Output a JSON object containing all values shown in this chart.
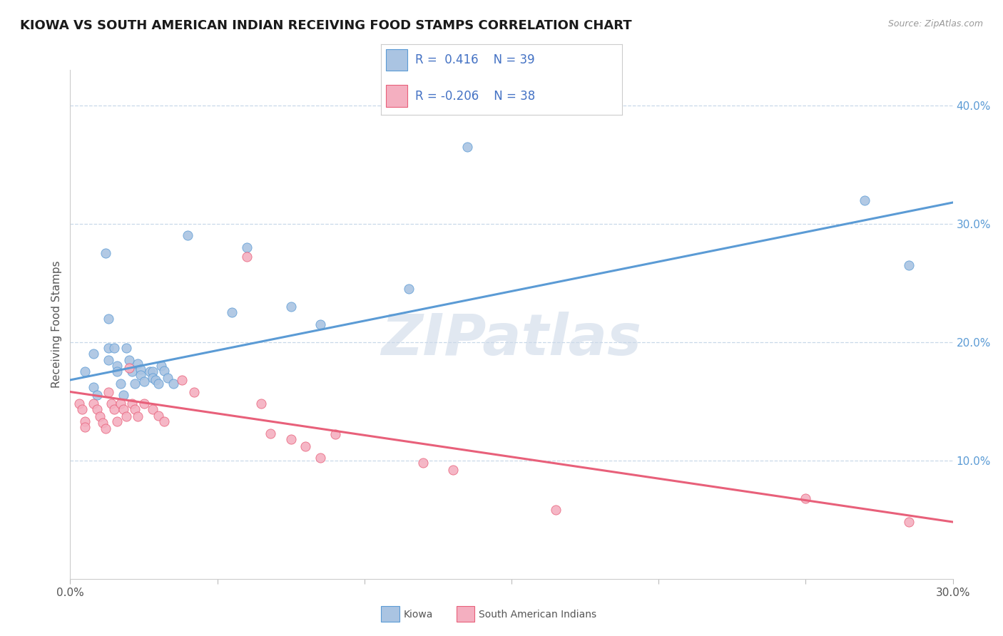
{
  "title": "KIOWA VS SOUTH AMERICAN INDIAN RECEIVING FOOD STAMPS CORRELATION CHART",
  "source_text": "Source: ZipAtlas.com",
  "ylabel": "Receiving Food Stamps",
  "x_min": 0.0,
  "x_max": 0.3,
  "y_min": 0.0,
  "y_max": 0.43,
  "x_ticks": [
    0.0,
    0.05,
    0.1,
    0.15,
    0.2,
    0.25,
    0.3
  ],
  "x_tick_labels": [
    "0.0%",
    "",
    "",
    "",
    "",
    "",
    "30.0%"
  ],
  "y_ticks_right": [
    0.1,
    0.2,
    0.3,
    0.4
  ],
  "y_tick_labels_right": [
    "10.0%",
    "20.0%",
    "30.0%",
    "40.0%"
  ],
  "kiowa_color": "#aac4e2",
  "sa_color": "#f4afc0",
  "kiowa_line_color": "#5b9bd5",
  "sa_line_color": "#e8607a",
  "kiowa_R": "0.416",
  "kiowa_N": "39",
  "sa_R": "-0.206",
  "sa_N": "38",
  "legend_text_color": "#4472c4",
  "watermark_color": "#cdd9e8",
  "kiowa_scatter": [
    [
      0.005,
      0.175
    ],
    [
      0.008,
      0.19
    ],
    [
      0.008,
      0.162
    ],
    [
      0.009,
      0.155
    ],
    [
      0.012,
      0.275
    ],
    [
      0.013,
      0.22
    ],
    [
      0.013,
      0.195
    ],
    [
      0.013,
      0.185
    ],
    [
      0.015,
      0.195
    ],
    [
      0.016,
      0.18
    ],
    [
      0.016,
      0.175
    ],
    [
      0.017,
      0.165
    ],
    [
      0.018,
      0.155
    ],
    [
      0.019,
      0.195
    ],
    [
      0.02,
      0.185
    ],
    [
      0.021,
      0.175
    ],
    [
      0.022,
      0.165
    ],
    [
      0.023,
      0.182
    ],
    [
      0.024,
      0.177
    ],
    [
      0.024,
      0.172
    ],
    [
      0.025,
      0.167
    ],
    [
      0.027,
      0.175
    ],
    [
      0.028,
      0.175
    ],
    [
      0.028,
      0.17
    ],
    [
      0.029,
      0.168
    ],
    [
      0.03,
      0.165
    ],
    [
      0.031,
      0.18
    ],
    [
      0.032,
      0.176
    ],
    [
      0.033,
      0.17
    ],
    [
      0.035,
      0.165
    ],
    [
      0.04,
      0.29
    ],
    [
      0.055,
      0.225
    ],
    [
      0.06,
      0.28
    ],
    [
      0.075,
      0.23
    ],
    [
      0.085,
      0.215
    ],
    [
      0.115,
      0.245
    ],
    [
      0.135,
      0.365
    ],
    [
      0.27,
      0.32
    ],
    [
      0.285,
      0.265
    ]
  ],
  "sa_scatter": [
    [
      0.003,
      0.148
    ],
    [
      0.004,
      0.143
    ],
    [
      0.005,
      0.133
    ],
    [
      0.005,
      0.128
    ],
    [
      0.008,
      0.148
    ],
    [
      0.009,
      0.143
    ],
    [
      0.01,
      0.137
    ],
    [
      0.011,
      0.132
    ],
    [
      0.012,
      0.127
    ],
    [
      0.013,
      0.158
    ],
    [
      0.014,
      0.148
    ],
    [
      0.015,
      0.143
    ],
    [
      0.016,
      0.133
    ],
    [
      0.017,
      0.148
    ],
    [
      0.018,
      0.143
    ],
    [
      0.019,
      0.137
    ],
    [
      0.02,
      0.178
    ],
    [
      0.021,
      0.148
    ],
    [
      0.022,
      0.143
    ],
    [
      0.023,
      0.137
    ],
    [
      0.025,
      0.148
    ],
    [
      0.028,
      0.143
    ],
    [
      0.03,
      0.138
    ],
    [
      0.032,
      0.133
    ],
    [
      0.038,
      0.168
    ],
    [
      0.042,
      0.158
    ],
    [
      0.06,
      0.272
    ],
    [
      0.065,
      0.148
    ],
    [
      0.068,
      0.123
    ],
    [
      0.075,
      0.118
    ],
    [
      0.08,
      0.112
    ],
    [
      0.085,
      0.102
    ],
    [
      0.09,
      0.122
    ],
    [
      0.12,
      0.098
    ],
    [
      0.13,
      0.092
    ],
    [
      0.165,
      0.058
    ],
    [
      0.25,
      0.068
    ],
    [
      0.285,
      0.048
    ]
  ],
  "kiowa_trendline": [
    [
      0.0,
      0.168
    ],
    [
      0.3,
      0.318
    ]
  ],
  "sa_trendline": [
    [
      0.0,
      0.158
    ],
    [
      0.3,
      0.048
    ]
  ],
  "background_color": "#ffffff",
  "grid_color": "#c8d8e8",
  "title_fontsize": 13,
  "axis_fontsize": 11
}
